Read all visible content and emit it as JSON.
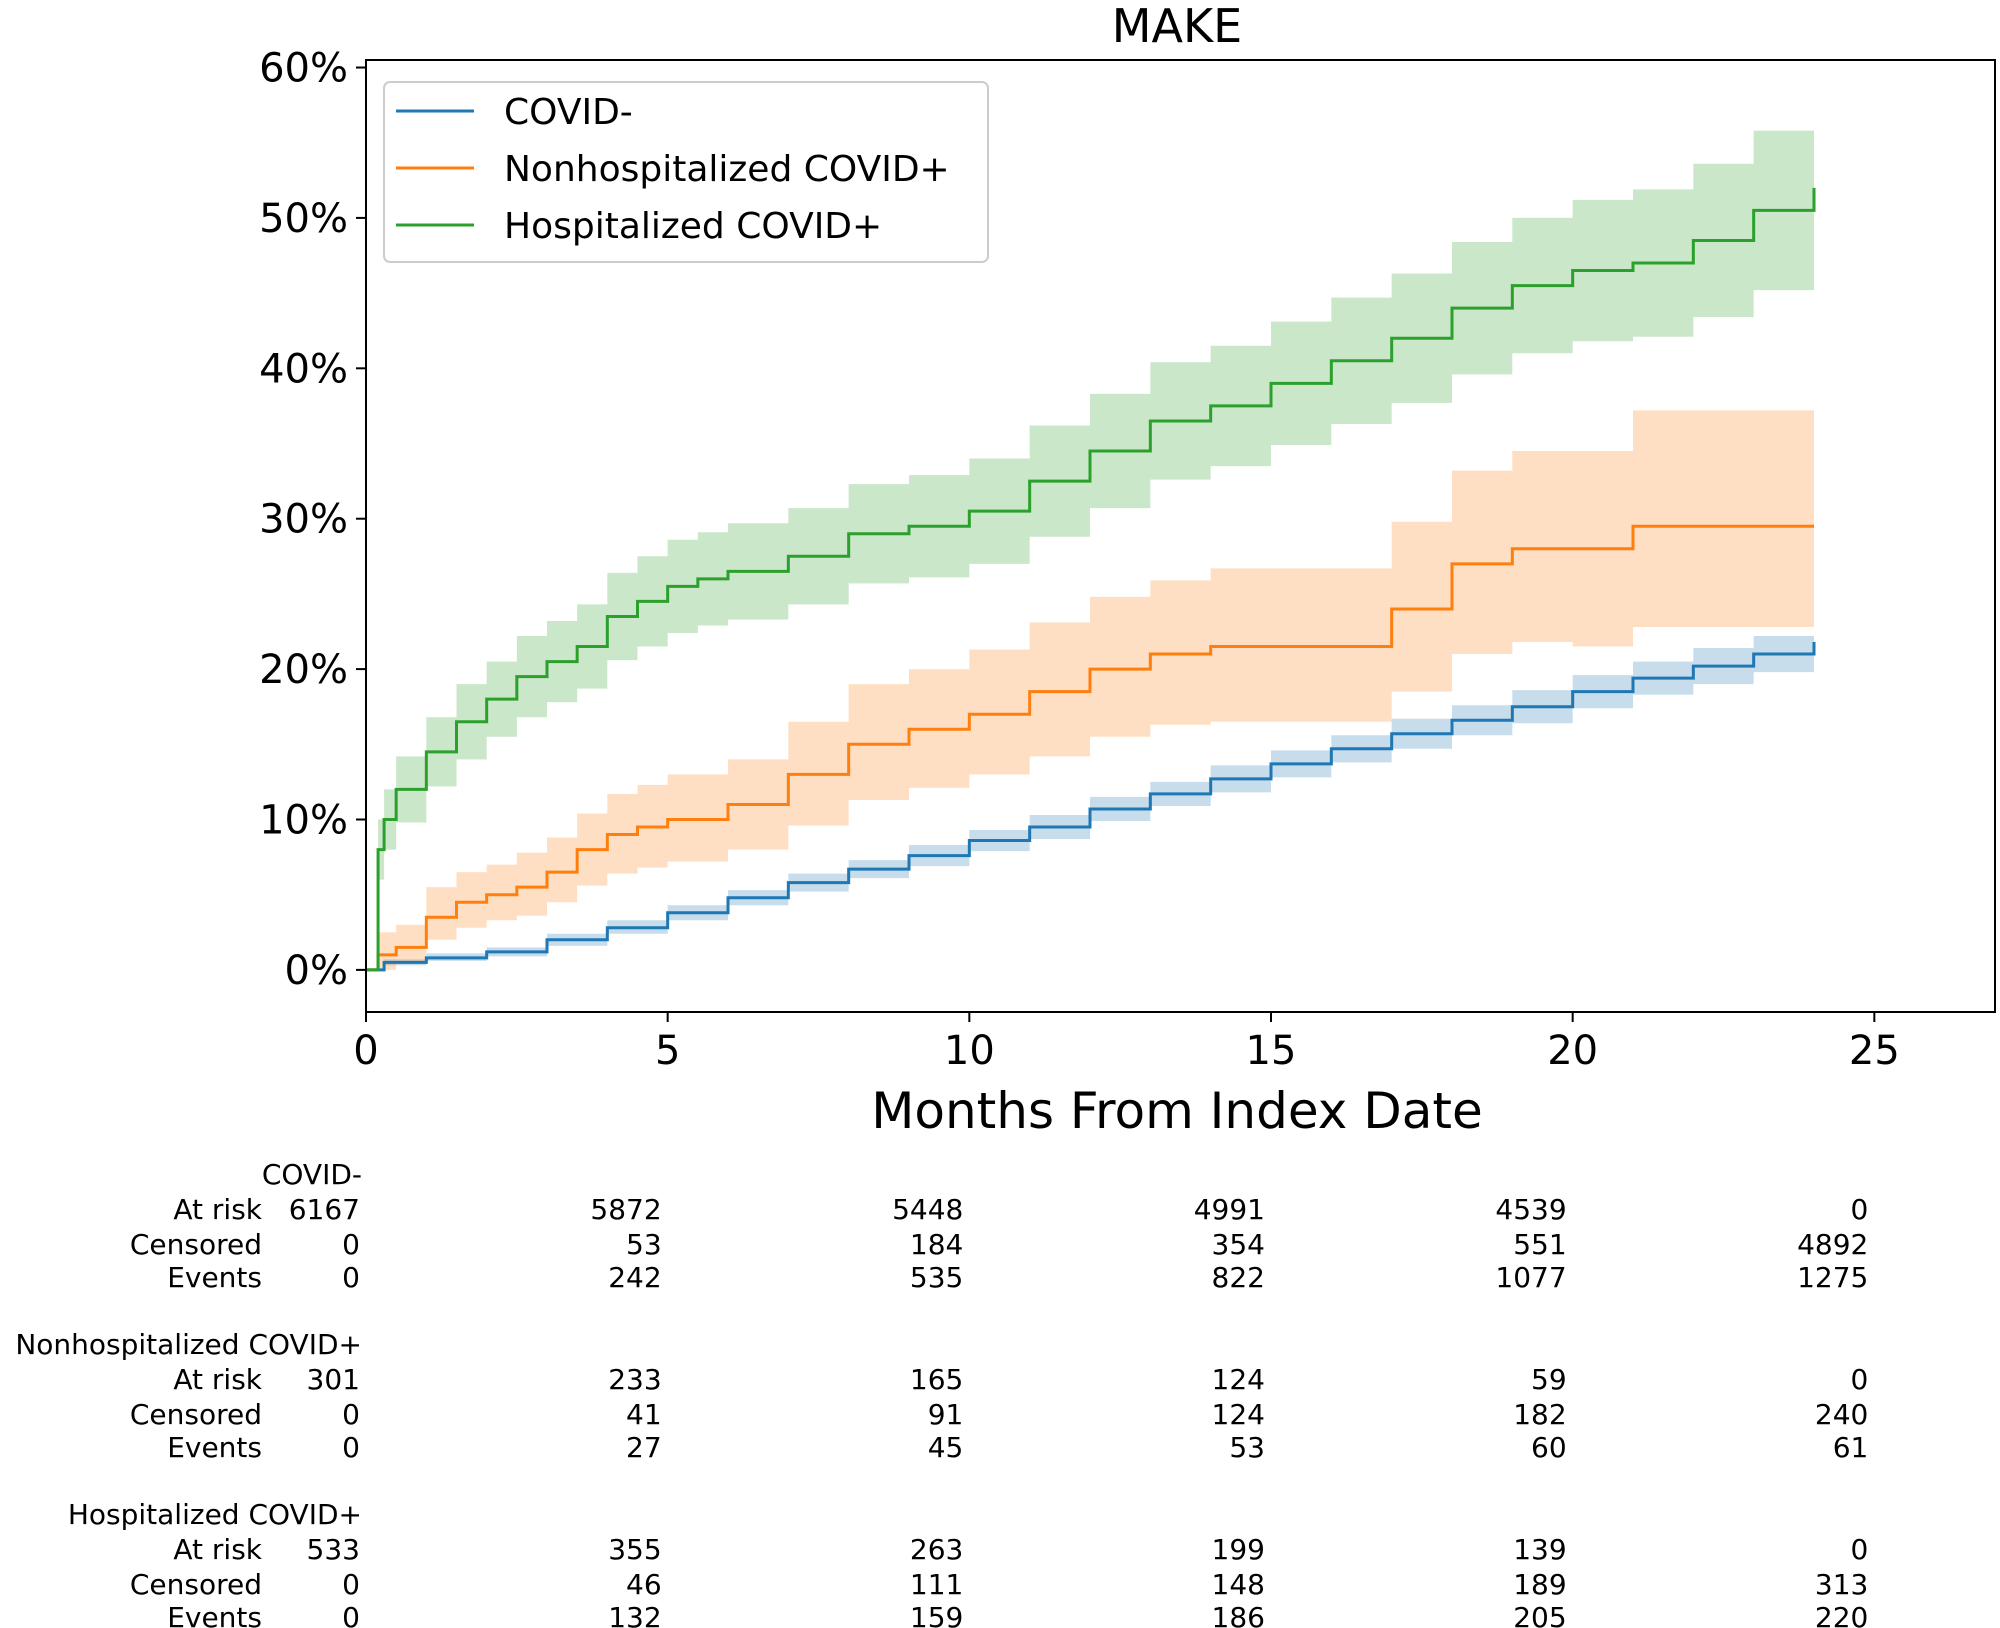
{
  "chart_data": {
    "type": "line",
    "title": "MAKE",
    "xlabel": "Months From Index Date",
    "ylabel": "",
    "xlim": [
      0,
      27
    ],
    "ylim": [
      -0.028,
      0.605
    ],
    "x_ticks": [
      0,
      5,
      10,
      15,
      20,
      25
    ],
    "x_tick_labels": [
      "0",
      "5",
      "10",
      "15",
      "20",
      "25"
    ],
    "y_ticks": [
      0,
      0.1,
      0.2,
      0.3,
      0.4,
      0.5,
      0.6
    ],
    "y_tick_labels": [
      "0%",
      "10%",
      "20%",
      "30%",
      "40%",
      "50%",
      "60%"
    ],
    "grid": false,
    "legend": "top-left",
    "series": [
      {
        "name": "COVID-",
        "color": "#1f77b4",
        "x": [
          0,
          0.3,
          1,
          2,
          3,
          4,
          5,
          6,
          7,
          8,
          9,
          10,
          11,
          12,
          13,
          14,
          15,
          16,
          17,
          18,
          19,
          20,
          21,
          22,
          23,
          24
        ],
        "y": [
          0,
          0.005,
          0.008,
          0.012,
          0.02,
          0.028,
          0.038,
          0.048,
          0.058,
          0.067,
          0.076,
          0.086,
          0.095,
          0.107,
          0.117,
          0.127,
          0.137,
          0.147,
          0.157,
          0.166,
          0.175,
          0.185,
          0.194,
          0.202,
          0.21,
          0.218
        ],
        "lower": [
          0,
          0.003,
          0.006,
          0.009,
          0.016,
          0.024,
          0.033,
          0.043,
          0.052,
          0.061,
          0.069,
          0.079,
          0.087,
          0.099,
          0.109,
          0.118,
          0.128,
          0.138,
          0.147,
          0.156,
          0.164,
          0.174,
          0.183,
          0.19,
          0.198,
          0.205
        ],
        "upper": [
          0,
          0.007,
          0.011,
          0.015,
          0.024,
          0.033,
          0.043,
          0.053,
          0.064,
          0.073,
          0.083,
          0.093,
          0.103,
          0.115,
          0.125,
          0.136,
          0.146,
          0.156,
          0.167,
          0.176,
          0.186,
          0.196,
          0.205,
          0.214,
          0.222,
          0.23
        ]
      },
      {
        "name": "Nonhospitalized COVID+",
        "color": "#ff7f0e",
        "x": [
          0,
          0.2,
          0.5,
          1,
          1.5,
          2,
          2.5,
          3,
          3.5,
          4,
          4.5,
          5,
          6,
          7,
          8,
          9,
          10,
          11,
          12,
          13,
          14,
          15,
          16,
          17,
          18,
          19,
          20,
          21,
          22,
          23,
          24
        ],
        "y": [
          0,
          0.01,
          0.015,
          0.035,
          0.045,
          0.05,
          0.055,
          0.065,
          0.08,
          0.09,
          0.095,
          0.1,
          0.11,
          0.13,
          0.15,
          0.16,
          0.17,
          0.185,
          0.2,
          0.21,
          0.215,
          0.215,
          0.215,
          0.24,
          0.27,
          0.28,
          0.28,
          0.295,
          0.295,
          0.295,
          0.295
        ],
        "lower": [
          0,
          0,
          0.005,
          0.02,
          0.028,
          0.033,
          0.036,
          0.045,
          0.056,
          0.064,
          0.068,
          0.072,
          0.08,
          0.096,
          0.113,
          0.121,
          0.13,
          0.142,
          0.155,
          0.163,
          0.165,
          0.165,
          0.165,
          0.185,
          0.21,
          0.218,
          0.215,
          0.228,
          0.228,
          0.228,
          0.228
        ],
        "upper": [
          0,
          0.025,
          0.03,
          0.055,
          0.065,
          0.07,
          0.078,
          0.088,
          0.104,
          0.117,
          0.123,
          0.13,
          0.14,
          0.165,
          0.19,
          0.2,
          0.213,
          0.231,
          0.248,
          0.259,
          0.267,
          0.267,
          0.267,
          0.298,
          0.332,
          0.345,
          0.345,
          0.372,
          0.372,
          0.372,
          0.372
        ]
      },
      {
        "name": "Hospitalized COVID+",
        "color": "#2ca02c",
        "x": [
          0,
          0.2,
          0.3,
          0.5,
          1,
          1.5,
          2,
          2.5,
          3,
          3.5,
          4,
          4.5,
          5,
          5.5,
          6,
          7,
          8,
          9,
          10,
          11,
          12,
          13,
          14,
          15,
          16,
          17,
          18,
          19,
          20,
          21,
          22,
          23,
          24
        ],
        "y": [
          0,
          0.08,
          0.1,
          0.12,
          0.145,
          0.165,
          0.18,
          0.195,
          0.205,
          0.215,
          0.235,
          0.245,
          0.255,
          0.26,
          0.265,
          0.275,
          0.29,
          0.295,
          0.305,
          0.325,
          0.345,
          0.365,
          0.375,
          0.39,
          0.405,
          0.42,
          0.44,
          0.455,
          0.465,
          0.47,
          0.485,
          0.505,
          0.52
        ],
        "lower": [
          0,
          0.06,
          0.08,
          0.098,
          0.122,
          0.14,
          0.155,
          0.168,
          0.178,
          0.187,
          0.206,
          0.215,
          0.224,
          0.229,
          0.233,
          0.243,
          0.257,
          0.261,
          0.27,
          0.288,
          0.307,
          0.326,
          0.335,
          0.349,
          0.363,
          0.377,
          0.396,
          0.41,
          0.418,
          0.421,
          0.434,
          0.452,
          0.465
        ],
        "upper": [
          0,
          0.1,
          0.12,
          0.142,
          0.168,
          0.19,
          0.205,
          0.222,
          0.232,
          0.243,
          0.264,
          0.275,
          0.286,
          0.291,
          0.297,
          0.307,
          0.323,
          0.329,
          0.34,
          0.362,
          0.383,
          0.404,
          0.415,
          0.431,
          0.447,
          0.463,
          0.484,
          0.5,
          0.512,
          0.519,
          0.536,
          0.558,
          0.575
        ]
      }
    ],
    "risk_table": {
      "row_labels": [
        "At risk",
        "Censored",
        "Events"
      ],
      "groups": [
        {
          "name": "COVID-",
          "at_risk": [
            "6167",
            "5872",
            "5448",
            "4991",
            "4539",
            "0"
          ],
          "censored": [
            "0",
            "53",
            "184",
            "354",
            "551",
            "4892"
          ],
          "events": [
            "0",
            "242",
            "535",
            "822",
            "1077",
            "1275"
          ]
        },
        {
          "name": "Nonhospitalized COVID+",
          "at_risk": [
            "301",
            "233",
            "165",
            "124",
            "59",
            "0"
          ],
          "censored": [
            "0",
            "41",
            "91",
            "124",
            "182",
            "240"
          ],
          "events": [
            "0",
            "27",
            "45",
            "53",
            "60",
            "61"
          ]
        },
        {
          "name": "Hospitalized COVID+",
          "at_risk": [
            "533",
            "355",
            "263",
            "199",
            "139",
            "0"
          ],
          "censored": [
            "0",
            "46",
            "111",
            "148",
            "189",
            "313"
          ],
          "events": [
            "0",
            "132",
            "159",
            "186",
            "205",
            "220"
          ]
        }
      ]
    }
  }
}
